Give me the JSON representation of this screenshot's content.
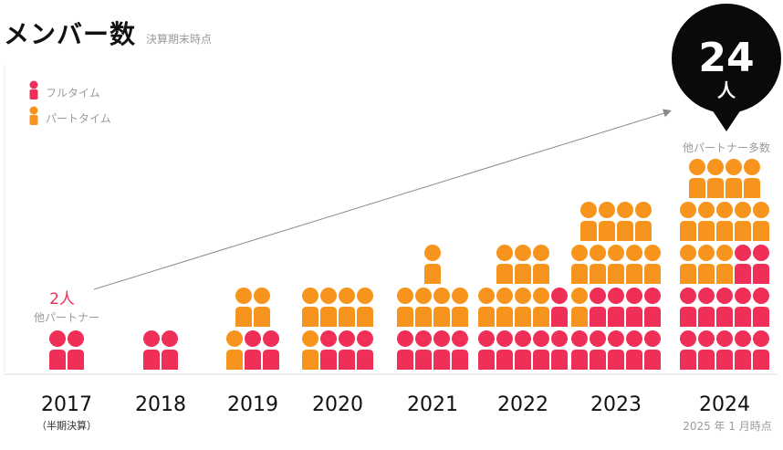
{
  "header": {
    "title": "メンバー数",
    "subtitle": "決算期末時点"
  },
  "colors": {
    "fulltime": "#ef2f57",
    "parttime": "#f7941d",
    "text_gray": "#9a9a9a",
    "accent_red": "#ef2f57",
    "callout_bg": "#0a0a0a",
    "axis": "#dddddd",
    "arrow": "#888888"
  },
  "chart_data": {
    "type": "pictograph",
    "title": "メンバー数",
    "subtitle": "決算期末時点",
    "unit": "人",
    "categories": [
      "2017",
      "2018",
      "2019",
      "2020",
      "2021",
      "2022",
      "2023",
      "2024"
    ],
    "series": [
      {
        "name": "フルタイム",
        "key": "fulltime",
        "values": [
          2,
          2,
          2,
          3,
          4,
          6,
          9,
          12
        ]
      },
      {
        "name": "パートタイム",
        "key": "parttime",
        "values": [
          0,
          0,
          3,
          5,
          5,
          7,
          10,
          12
        ]
      }
    ],
    "category_notes": {
      "2017": "（半期決算）"
    },
    "annotations": {
      "start": {
        "category": "2017",
        "value_label": "2人",
        "sub_label": "他パートナー"
      },
      "end": {
        "category": "2024",
        "value_label": "24",
        "unit_label": "人",
        "sub_label": "他パートナー多数"
      },
      "footnote": "2025 年 1 月時点"
    },
    "legend_position": "top-left",
    "grid": false
  }
}
